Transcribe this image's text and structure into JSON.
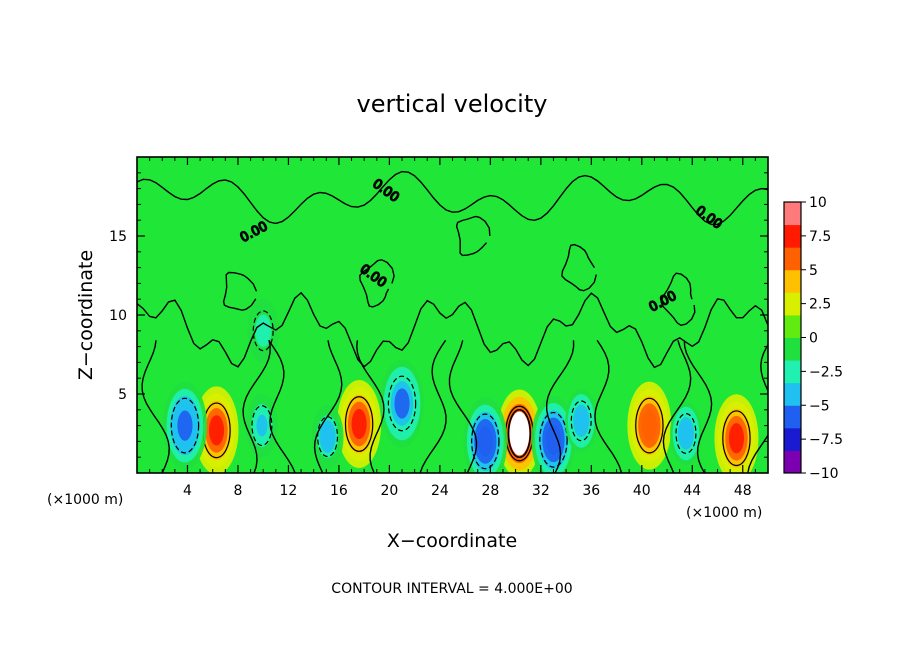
{
  "chart_data": {
    "type": "heatmap",
    "title": "vertical velocity",
    "xlabel": "X−coordinate",
    "ylabel": "Z−coordinate",
    "x_unit_left": "(×1000 m)",
    "x_unit_right": "(×1000 m)",
    "xlim": [
      0,
      50
    ],
    "ylim": [
      0,
      20
    ],
    "x_ticks": [
      4,
      8,
      12,
      16,
      20,
      24,
      28,
      32,
      36,
      40,
      44,
      48
    ],
    "x_tick_labels": [
      "4",
      "8",
      "12",
      "16",
      "20",
      "24",
      "28",
      "32",
      "36",
      "40",
      "44",
      "48"
    ],
    "y_ticks": [
      5,
      10,
      15
    ],
    "y_tick_labels": [
      "5",
      "10",
      "15"
    ],
    "contour_interval_text": "CONTOUR INTERVAL = 4.000E+00",
    "contour_labels": [
      "0.00",
      "0.00",
      "0.00",
      "0.00",
      "0.00"
    ],
    "colorbar": {
      "min": -10,
      "max": 10,
      "tick_values": [
        10,
        7.5,
        5,
        2.5,
        0,
        -2.5,
        -5,
        -7.5,
        -10
      ],
      "tick_labels": [
        "10",
        "7.5",
        "5",
        "2.5",
        "0",
        "−2.5",
        "−5",
        "−7.5",
        "−10"
      ],
      "colors": [
        "#7a00b0",
        "#1a1ad0",
        "#2060f0",
        "#20c0f0",
        "#20f0b0",
        "#20e040",
        "#60ec10",
        "#d8f000",
        "#ffc000",
        "#ff6000",
        "#ff1a00",
        "#ff7a7a"
      ]
    },
    "extrema": [
      {
        "sign": "up",
        "x": 6.3,
        "z": 2.7,
        "value": 7
      },
      {
        "sign": "up",
        "x": 17.6,
        "z": 3.1,
        "value": 7.5
      },
      {
        "sign": "up",
        "x": 30.3,
        "z": 2.5,
        "value": 10
      },
      {
        "sign": "up",
        "x": 40.6,
        "z": 3.0,
        "value": 6.5
      },
      {
        "sign": "up",
        "x": 47.5,
        "z": 2.2,
        "value": 7.5
      },
      {
        "sign": "down",
        "x": 3.8,
        "z": 3.0,
        "value": -6
      },
      {
        "sign": "down",
        "x": 9.9,
        "z": 3.0,
        "value": -3.5
      },
      {
        "sign": "down",
        "x": 15.1,
        "z": 2.3,
        "value": -4.5
      },
      {
        "sign": "down",
        "x": 21.0,
        "z": 4.4,
        "value": -5.5
      },
      {
        "sign": "down",
        "x": 27.6,
        "z": 2.0,
        "value": -6.5
      },
      {
        "sign": "down",
        "x": 33.0,
        "z": 2.1,
        "value": -6.5
      },
      {
        "sign": "down",
        "x": 35.2,
        "z": 3.3,
        "value": -5
      },
      {
        "sign": "down",
        "x": 43.5,
        "z": 2.5,
        "value": -5
      },
      {
        "sign": "down",
        "x": 10.0,
        "z": 9.0,
        "value": -2.5
      }
    ]
  }
}
